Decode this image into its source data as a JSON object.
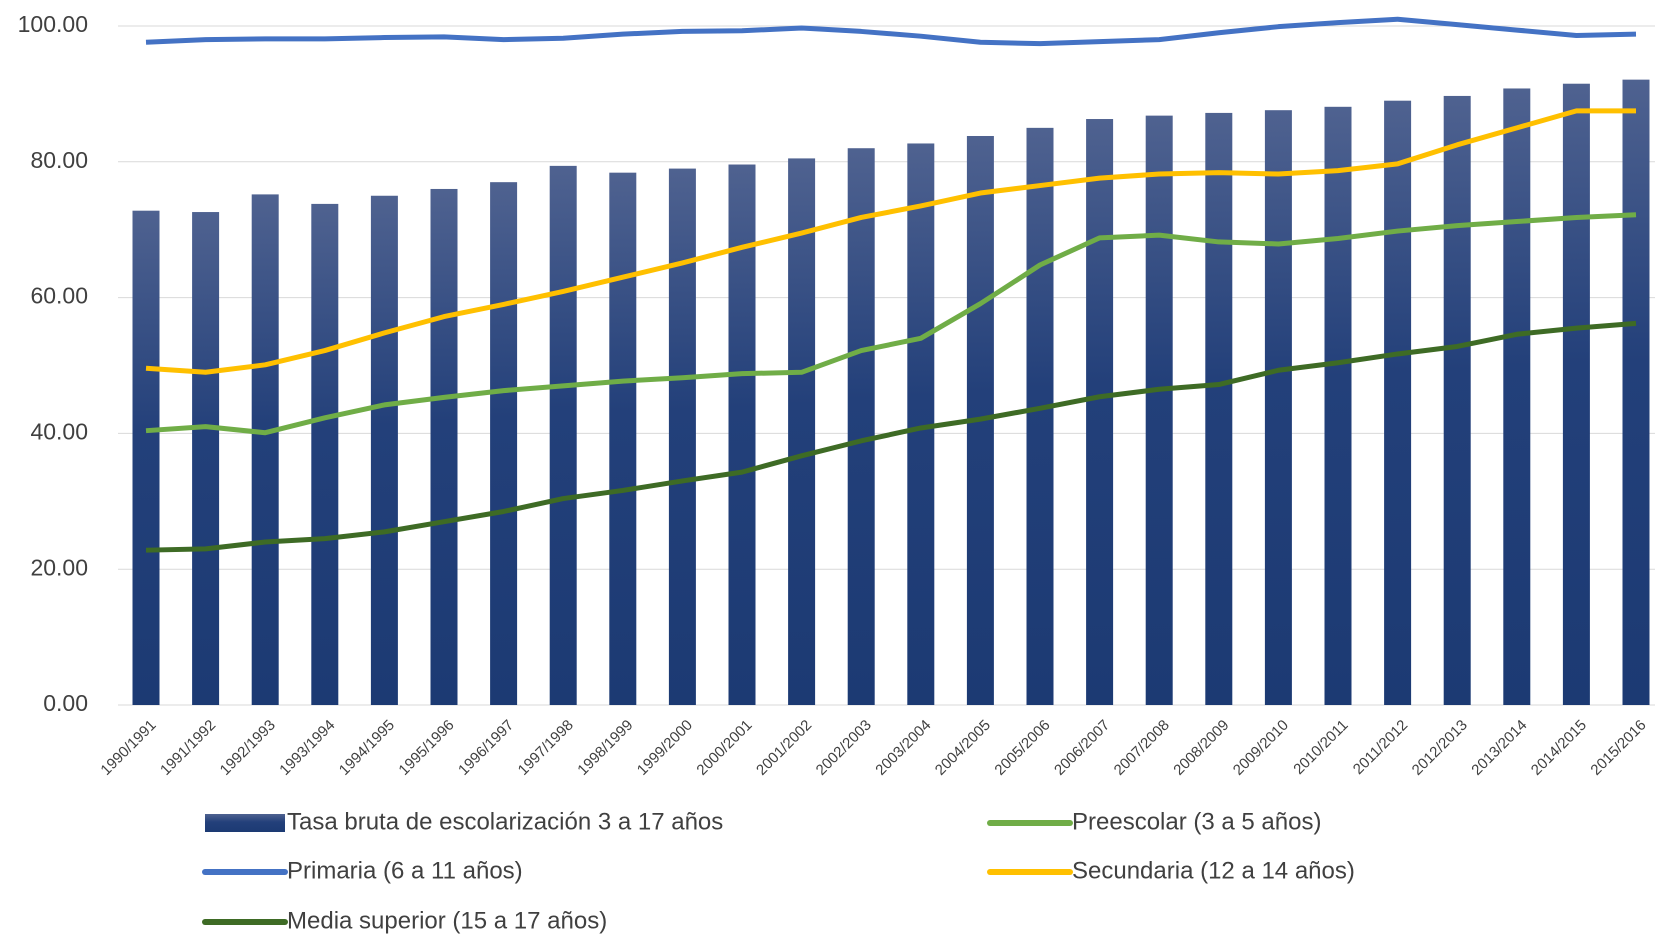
{
  "chart_data": {
    "type": "bar",
    "categories": [
      "1990/1991",
      "1991/1992",
      "1992/1993",
      "1993/1994",
      "1994/1995",
      "1995/1996",
      "1996/1997",
      "1997/1998",
      "1998/1999",
      "1999/2000",
      "2000/2001",
      "2001/2002",
      "2002/2003",
      "2003/2004",
      "2004/2005",
      "2005/2006",
      "2006/2007",
      "2007/2008",
      "2008/2009",
      "2009/2010",
      "2010/2011",
      "2011/2012",
      "2012/2013",
      "2013/2014",
      "2014/2015",
      "2015/2016"
    ],
    "series": [
      {
        "name": "Tasa bruta de escolarización 3 a 17 años",
        "type": "bar",
        "color": "#1c3a73",
        "values": [
          72.8,
          72.6,
          75.2,
          73.8,
          75.0,
          76.0,
          77.0,
          79.4,
          78.4,
          79.0,
          79.6,
          80.5,
          82.0,
          82.7,
          83.8,
          85.0,
          86.3,
          86.8,
          87.2,
          87.6,
          88.1,
          89.0,
          89.7,
          90.8,
          91.5,
          92.1
        ]
      },
      {
        "name": "Primaria (6 a 11 años)",
        "type": "line",
        "color": "#4472c4",
        "values": [
          97.6,
          98.0,
          98.1,
          98.1,
          98.3,
          98.4,
          98.0,
          98.2,
          98.8,
          99.2,
          99.3,
          99.7,
          99.2,
          98.5,
          97.6,
          97.4,
          97.7,
          98.0,
          99.0,
          99.9,
          100.5,
          101.0,
          100.2,
          99.4,
          98.6,
          98.8
        ]
      },
      {
        "name": "Secundaria (12 a 14 años)",
        "type": "line",
        "color": "#ffc000",
        "values": [
          49.6,
          49.0,
          50.1,
          52.2,
          54.8,
          57.2,
          59.0,
          60.9,
          63.0,
          65.1,
          67.4,
          69.5,
          71.8,
          73.5,
          75.4,
          76.5,
          77.6,
          78.2,
          78.4,
          78.2,
          78.7,
          79.7,
          82.5,
          85.0,
          87.5,
          87.5
        ]
      },
      {
        "name": "Preescolar (3 a 5 años)",
        "type": "line",
        "color": "#70ad47",
        "values": [
          40.4,
          41.0,
          40.1,
          42.3,
          44.2,
          45.3,
          46.3,
          47.0,
          47.7,
          48.2,
          48.8,
          49.0,
          52.2,
          54.0,
          59.1,
          64.8,
          68.8,
          69.2,
          68.2,
          67.9,
          68.7,
          69.8,
          70.6,
          71.2,
          71.8,
          72.2
        ]
      },
      {
        "name": "Media superior (15 a 17 años)",
        "type": "line",
        "color": "#3e6b25",
        "values": [
          22.8,
          23.0,
          24.0,
          24.5,
          25.5,
          27.0,
          28.5,
          30.4,
          31.6,
          33.0,
          34.3,
          36.7,
          38.9,
          40.8,
          42.1,
          43.7,
          45.4,
          46.5,
          47.2,
          49.3,
          50.4,
          51.7,
          52.8,
          54.6,
          55.5,
          56.2
        ]
      }
    ],
    "ylim": [
      0,
      100
    ],
    "yticks": [
      {
        "value": 0,
        "label": "0.00"
      },
      {
        "value": 20,
        "label": "20.00"
      },
      {
        "value": 40,
        "label": "40.00"
      },
      {
        "value": 60,
        "label": "60.00"
      },
      {
        "value": 80,
        "label": "80.00"
      },
      {
        "value": 100,
        "label": "100.00"
      }
    ],
    "grid": true
  }
}
